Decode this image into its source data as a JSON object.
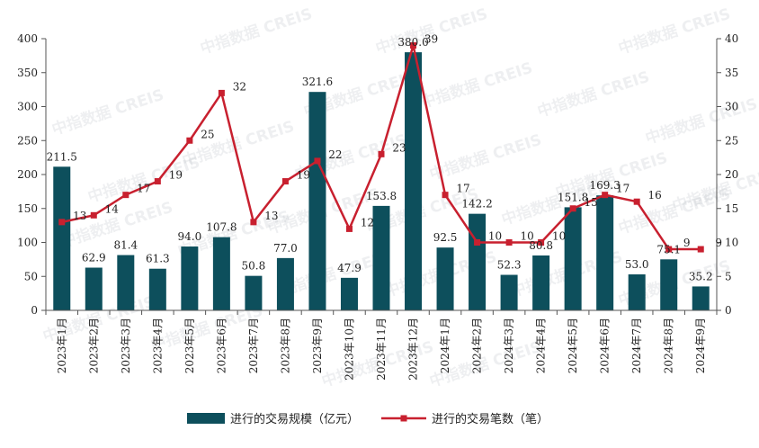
{
  "chart_data": {
    "type": "bar+line",
    "watermark": "中指数据 CREIS",
    "categories": [
      "2023年1月",
      "2023年2月",
      "2023年3月",
      "2023年4月",
      "2023年5月",
      "2023年6月",
      "2023年7月",
      "2023年8月",
      "2023年9月",
      "2023年10月",
      "2023年11月",
      "2023年12月",
      "2024年1月",
      "2024年2月",
      "2024年3月",
      "2024年4月",
      "2024年5月",
      "2024年6月",
      "2024年7月",
      "2024年8月",
      "2024年9月"
    ],
    "series": [
      {
        "name": "进行的交易规模（亿元）",
        "type": "bar",
        "axis": "left",
        "color": "#0d4f5c",
        "values": [
          211.5,
          62.9,
          81.4,
          61.3,
          94.0,
          107.8,
          50.8,
          77.0,
          321.6,
          47.9,
          153.8,
          380.0,
          92.5,
          142.2,
          52.3,
          80.8,
          151.8,
          169.3,
          53.0,
          75.1,
          35.2
        ],
        "labels": [
          "211.5",
          "62.9",
          "81.4",
          "61.3",
          "94.0",
          "107.8",
          "50.8",
          "77.0",
          "321.6",
          "47.9",
          "153.8",
          "380.0",
          "92.5",
          "142.2",
          "52.3",
          "80.8",
          "151.8",
          "169.3",
          "53.0",
          "75.1",
          "35.2"
        ]
      },
      {
        "name": "进行的交易笔数（笔）",
        "type": "line",
        "axis": "right",
        "color": "#c8202f",
        "values": [
          13,
          14,
          17,
          19,
          25,
          32,
          13,
          19,
          22,
          12,
          23,
          39,
          17,
          10,
          10,
          10,
          15,
          17,
          16,
          9,
          9
        ],
        "labels": [
          "13",
          "14",
          "17",
          "19",
          "25",
          "32",
          "13",
          "19",
          "22",
          "12",
          "23",
          "39",
          "17",
          "10",
          "10",
          "10",
          "15",
          "17",
          "16",
          "9",
          "9"
        ]
      }
    ],
    "y_left": {
      "min": 0,
      "max": 400,
      "ticks": [
        0,
        50,
        100,
        150,
        200,
        250,
        300,
        350,
        400
      ]
    },
    "y_right": {
      "min": 0,
      "max": 40,
      "ticks": [
        0,
        5,
        10,
        15,
        20,
        25,
        30,
        35,
        40
      ]
    },
    "legend_position": "bottom-center",
    "grid": false
  }
}
